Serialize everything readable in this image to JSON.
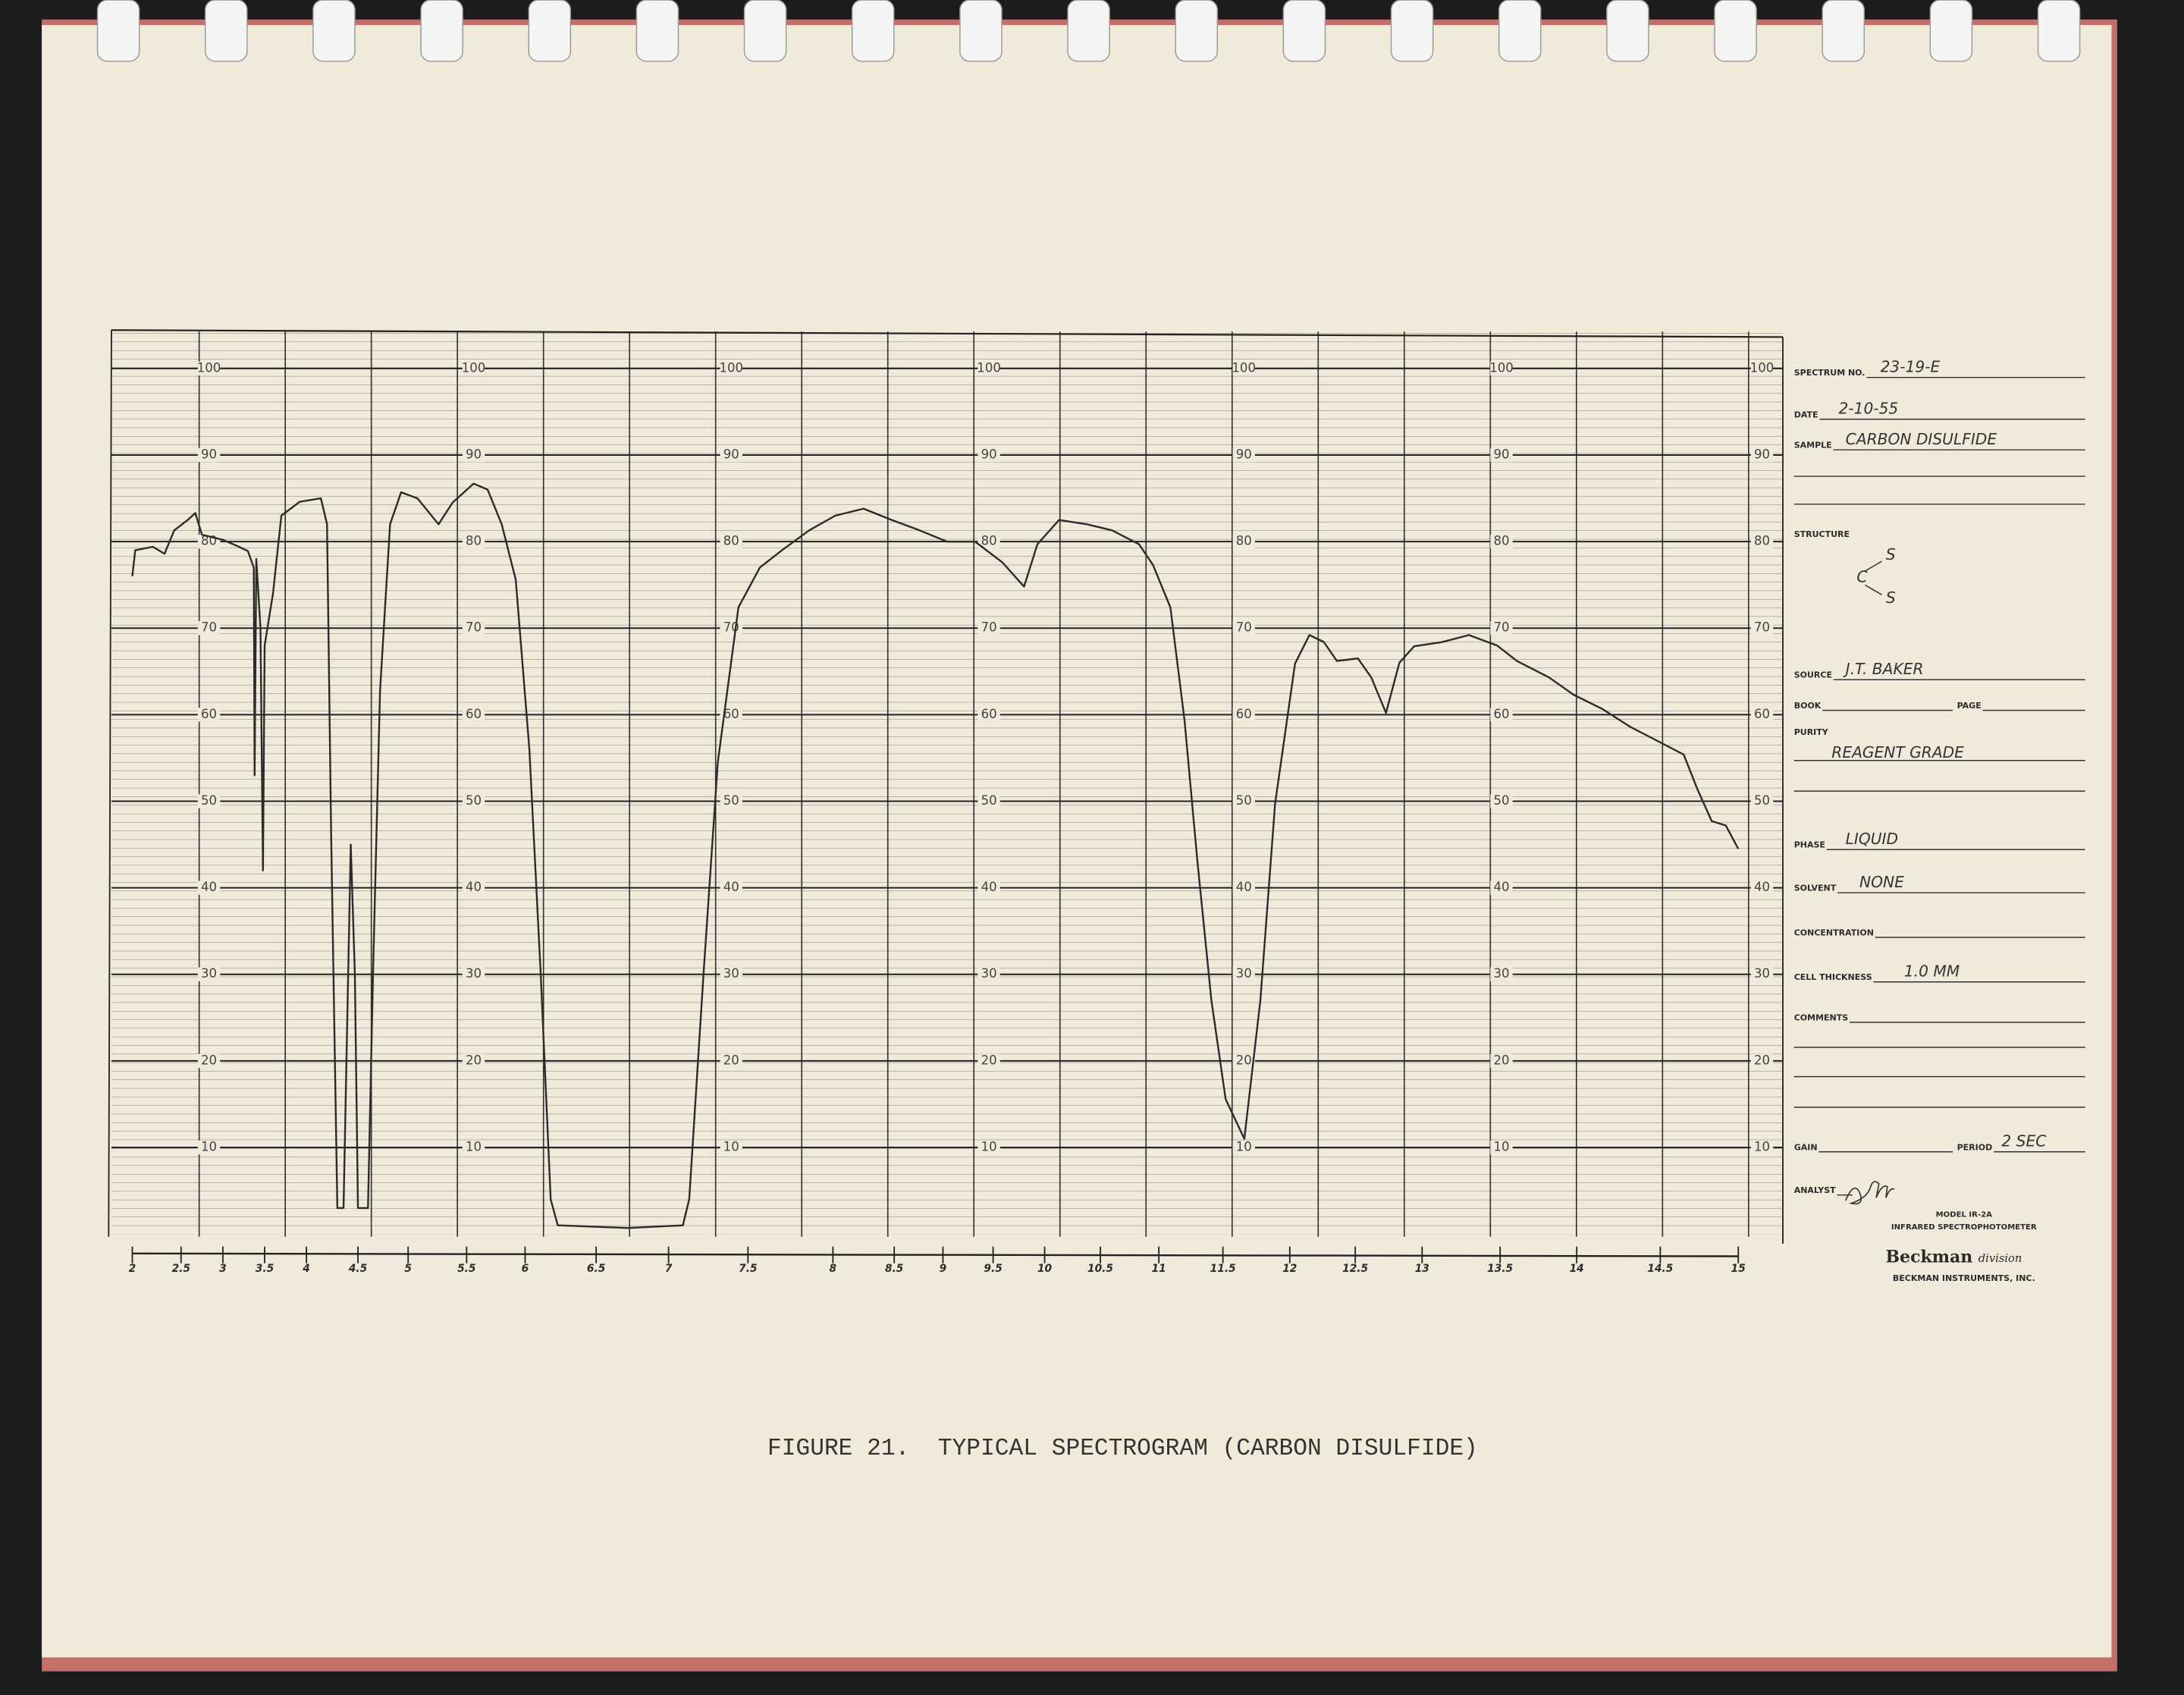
{
  "chart_data": {
    "type": "line",
    "x": [
      2.0,
      2.03,
      2.21,
      2.33,
      2.43,
      2.58,
      2.67,
      2.75,
      3.0,
      3.17,
      3.3,
      3.37,
      3.38,
      3.4,
      3.45,
      3.48,
      3.5,
      3.6,
      3.7,
      3.92,
      4.14,
      4.2,
      4.24,
      4.3,
      4.36,
      4.43,
      4.47,
      4.5,
      4.6,
      4.65,
      4.72,
      4.82,
      4.93,
      5.08,
      5.26,
      5.38,
      5.56,
      5.68,
      5.8,
      5.92,
      6.03,
      6.11,
      6.18,
      6.23,
      6.72,
      7.09,
      7.13,
      7.22,
      7.31,
      7.44,
      7.57,
      7.7,
      7.86,
      8.02,
      8.25,
      8.48,
      8.76,
      9.04,
      9.32,
      9.59,
      9.8,
      9.93,
      10.13,
      10.38,
      10.6,
      10.83,
      10.95,
      11.09,
      11.2,
      11.3,
      11.41,
      11.52,
      11.66,
      11.78,
      11.89,
      12.04,
      12.15,
      12.26,
      12.36,
      12.52,
      12.62,
      12.73,
      12.83,
      12.94,
      13.13,
      13.3,
      13.48,
      13.61,
      13.82,
      13.98,
      14.15,
      14.32,
      14.48,
      14.65,
      14.74,
      14.83,
      14.92,
      15.0
    ],
    "values": [
      76,
      79,
      79.4,
      78.6,
      81.3,
      82.5,
      83.3,
      80.8,
      80.2,
      79.5,
      78.9,
      77,
      53,
      78,
      70,
      42,
      68,
      74,
      83,
      84.6,
      85,
      82,
      46,
      3,
      3,
      45,
      30,
      3,
      3,
      30,
      62.7,
      82,
      85.7,
      85,
      82,
      84.5,
      86.7,
      86,
      82,
      75.6,
      56,
      30,
      4,
      1,
      0.7,
      1,
      4,
      30,
      54.5,
      72.4,
      77,
      79,
      81.3,
      83,
      83.8,
      82.5,
      81.3,
      80,
      80,
      77.6,
      74.8,
      79.7,
      82.5,
      82,
      81.3,
      79.7,
      77.3,
      72.4,
      59.4,
      43.2,
      27,
      15.6,
      11,
      27,
      49.7,
      65.9,
      69.2,
      68.4,
      66.2,
      66.5,
      64.3,
      60.2,
      66,
      67.9,
      68.4,
      69.2,
      68,
      66.2,
      64.3,
      62.3,
      60.7,
      58.6,
      57,
      55.4,
      51.3,
      47.7,
      47.2,
      44.5
    ],
    "color": "#2b2b2b",
    "xlim": [
      2,
      15
    ],
    "xticks": [
      2,
      2.5,
      3,
      3.5,
      4,
      4.5,
      5,
      5.5,
      6,
      6.5,
      7,
      7.5,
      8,
      8.5,
      9,
      9.5,
      10,
      10.5,
      11,
      11.5,
      12,
      12.5,
      13,
      13.5,
      14,
      14.5,
      15
    ],
    "ylim": [
      0,
      105
    ],
    "yticks": [
      10,
      20,
      30,
      40,
      50,
      60,
      70,
      80,
      90,
      100
    ],
    "grid": true
  },
  "form": {
    "fields": [
      {
        "label": "SPECTRUM NO.",
        "value": "23-19-E"
      },
      {
        "label": "DATE",
        "value": "2-10-55"
      },
      {
        "label": "SAMPLE",
        "value": "CARBON DISULFIDE"
      },
      {
        "label": "STRUCTURE"
      },
      {
        "label": "SOURCE",
        "value": "J.T. BAKER"
      },
      {
        "label": "BOOK"
      },
      {
        "label": "PAGE"
      },
      {
        "label": "PURITY",
        "value": "REAGENT GRADE"
      },
      {
        "label": "PHASE",
        "value": "LIQUID"
      },
      {
        "label": "SOLVENT",
        "value": "NONE"
      },
      {
        "label": "CONCENTRATION"
      },
      {
        "label": "CELL THICKNESS",
        "value": "1.0 MM"
      },
      {
        "label": "COMMENTS"
      },
      {
        "label": "GAIN"
      },
      {
        "label": "PERIOD",
        "value": "2 SEC"
      },
      {
        "label": "ANALYST"
      }
    ]
  },
  "structure": [
    "C",
    "S",
    "S"
  ],
  "instrument": {
    "model": "MODEL IR-2A",
    "name": "INFRARED SPECTROPHOTOMETER",
    "brand": "Beckman",
    "division": "division",
    "company": "BECKMAN INSTRUMENTS, INC."
  },
  "caption": "FIGURE 21.  TYPICAL SPECTROGRAM (CARBON DISULFIDE)"
}
